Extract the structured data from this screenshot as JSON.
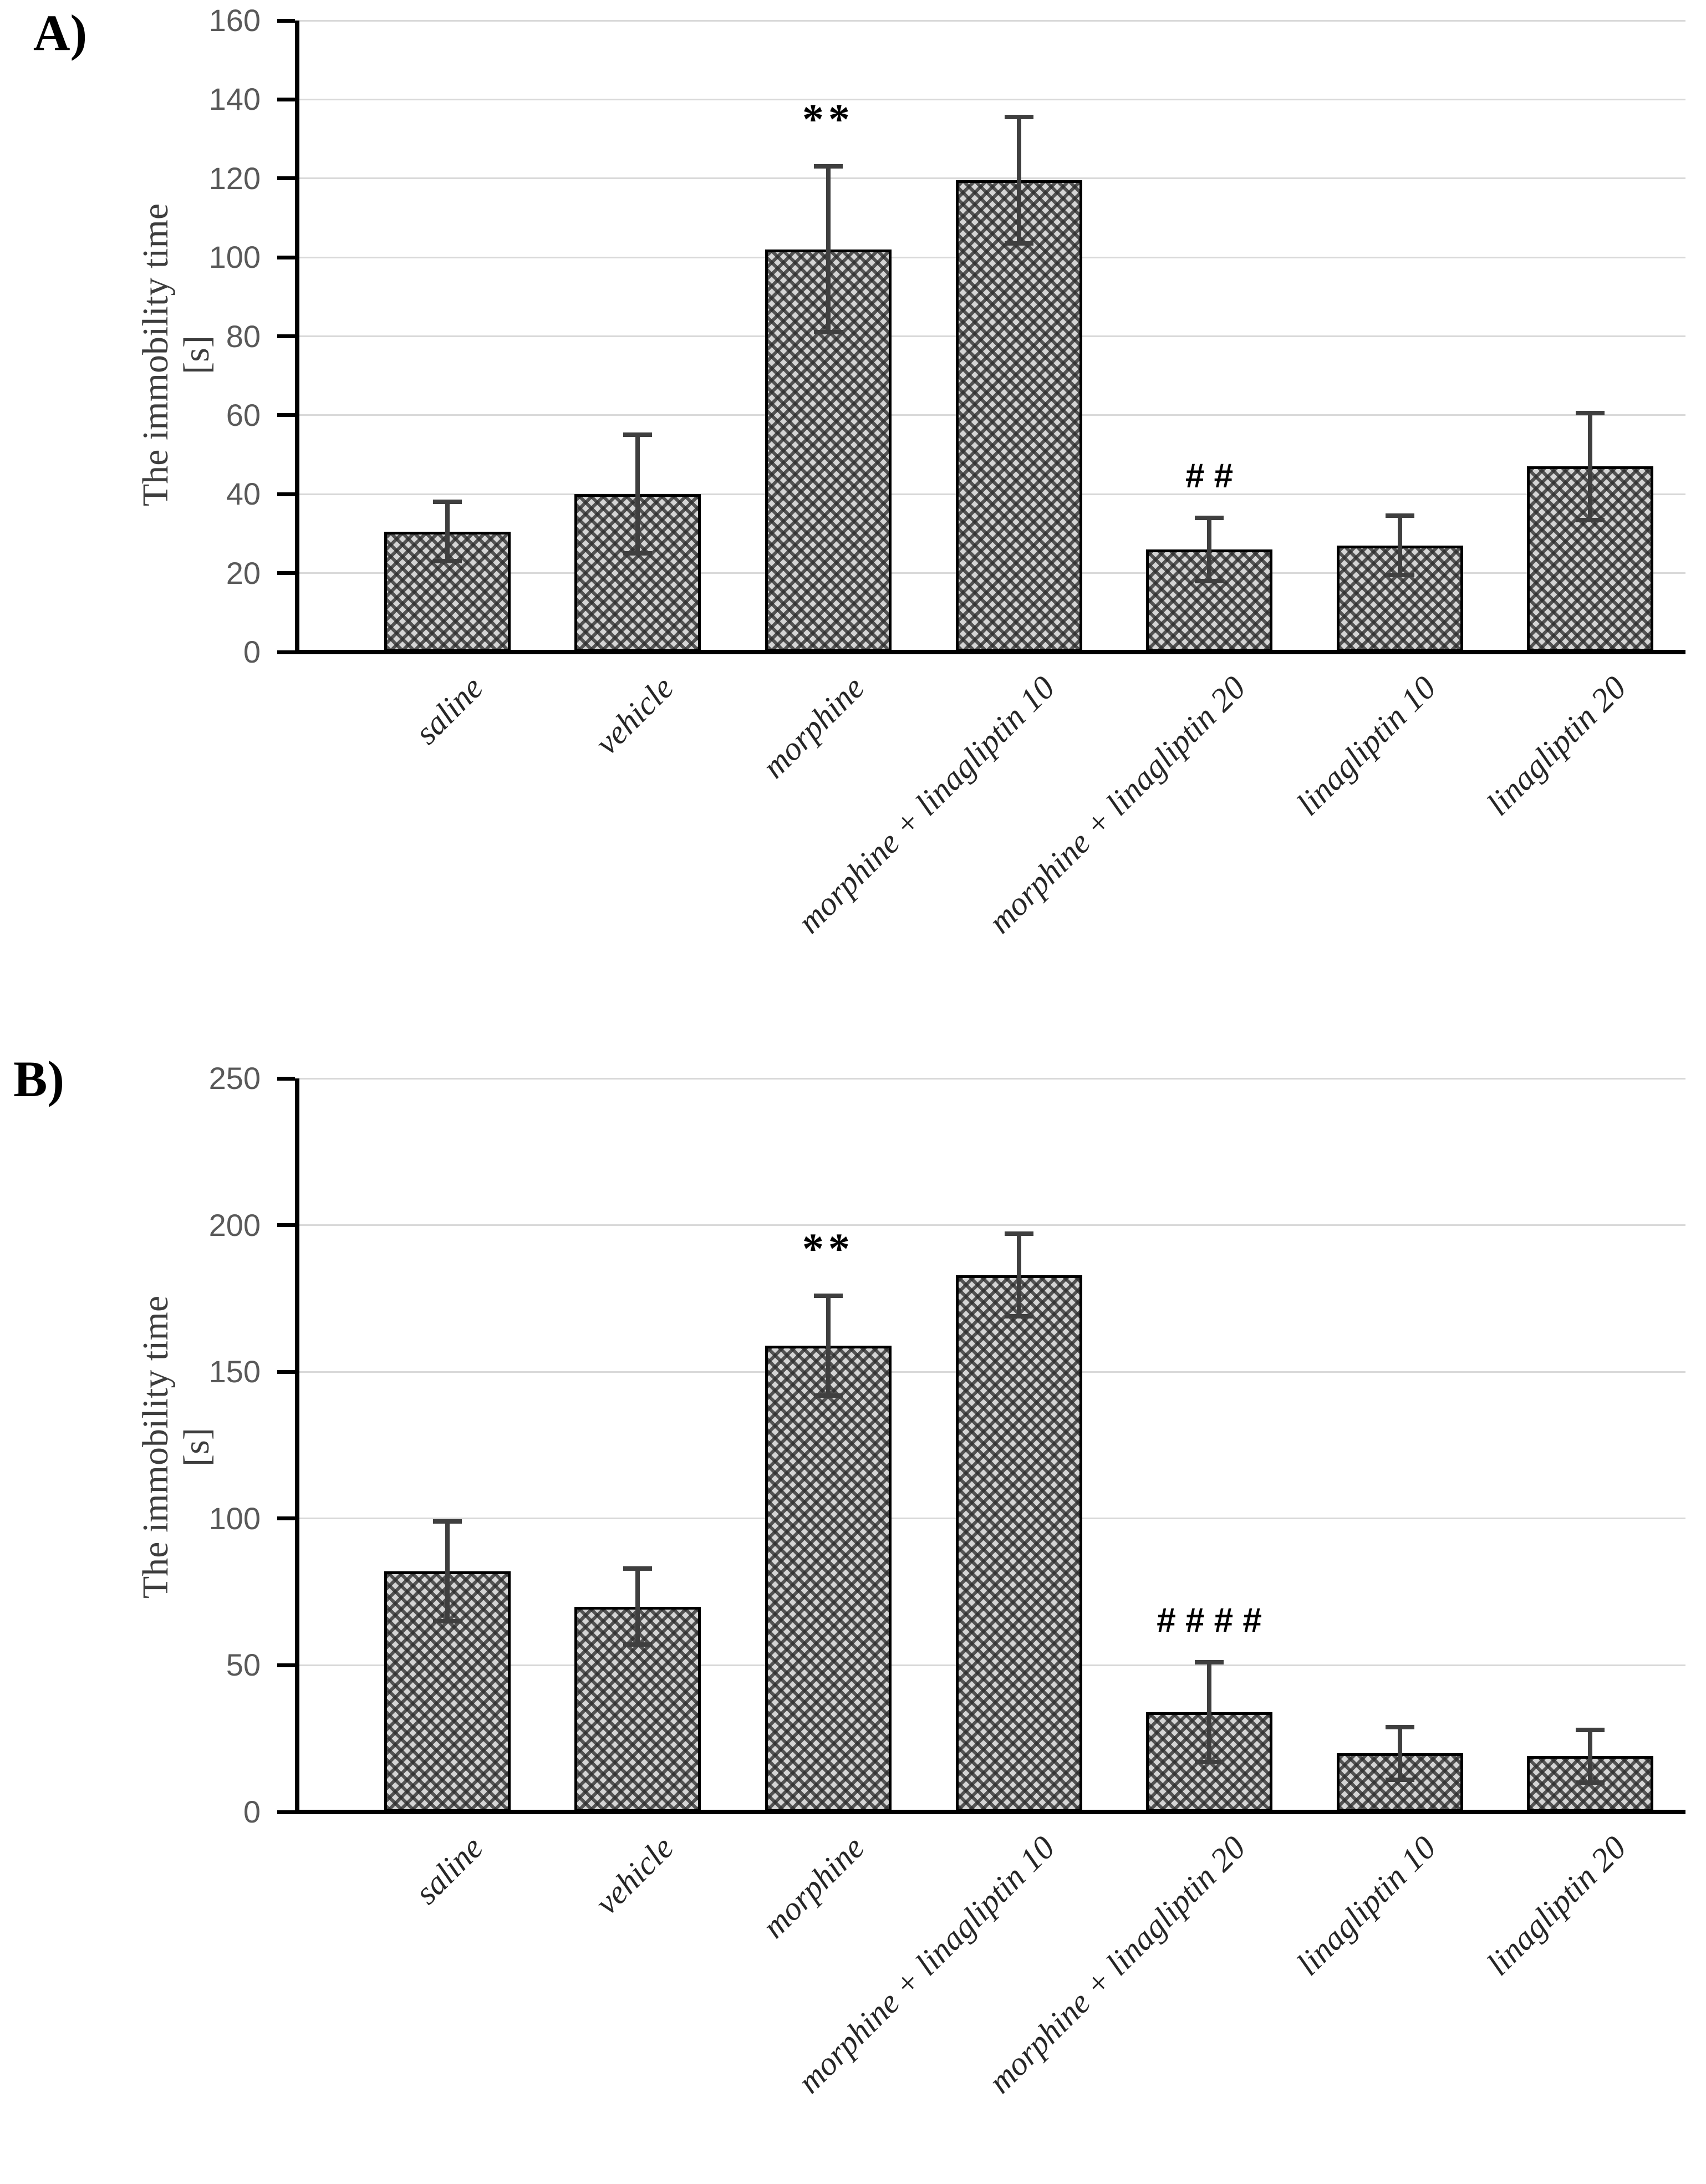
{
  "figure": {
    "background": "#ffffff",
    "description_visible_text_only": true
  },
  "style": {
    "bar_fill_base": "#d4d4d4",
    "bar_hatch": "#2d2d2d",
    "bar_border": "#000000",
    "error_bar_color": "#3f3f3f",
    "gridline_color": "#d9d9d9",
    "axis_color": "#000000",
    "tick_label_color": "#595959",
    "category_label_color": "#262626"
  },
  "chart_data": [
    {
      "id": "A",
      "panel_label": "A)",
      "type": "bar",
      "title": "",
      "ylabel_line1": "The immobility time",
      "ylabel_line2": "[s]",
      "xlabel": "",
      "ylim": [
        0,
        160
      ],
      "ytick_step": 20,
      "ytick_labels": [
        "0",
        "20",
        "40",
        "60",
        "80",
        "100",
        "120",
        "140",
        "160"
      ],
      "grid": "horizontal",
      "legend": "none",
      "categories": [
        "saline",
        "vehicle",
        "morphine",
        "morphine + linagliptin 10",
        "morphine + linagliptin 20",
        "linagliptin 10",
        "linagliptin 20"
      ],
      "values": [
        30.5,
        40,
        102,
        119.5,
        26,
        27,
        47
      ],
      "errors": [
        7.5,
        15,
        21,
        16,
        8,
        7.5,
        13.5
      ],
      "annotations": [
        "",
        "",
        "**",
        "",
        "# #",
        "",
        ""
      ]
    },
    {
      "id": "B",
      "panel_label": "B)",
      "type": "bar",
      "title": "",
      "ylabel_line1": "The immobility time",
      "ylabel_line2": "[s]",
      "xlabel": "",
      "ylim": [
        0,
        250
      ],
      "ytick_step": 50,
      "ytick_labels": [
        "0",
        "50",
        "100",
        "150",
        "200",
        "250"
      ],
      "grid": "horizontal",
      "legend": "none",
      "categories": [
        "saline",
        "vehicle",
        "morphine",
        "morphine + linagliptin 10",
        "morphine + linagliptin 20",
        "linagliptin 10",
        "linagliptin 20"
      ],
      "values": [
        82,
        70,
        159,
        183,
        34,
        20,
        19
      ],
      "errors": [
        17,
        13,
        17,
        14,
        17,
        9,
        9
      ],
      "annotations": [
        "",
        "",
        "**",
        "",
        "# # # #",
        "",
        ""
      ]
    }
  ]
}
